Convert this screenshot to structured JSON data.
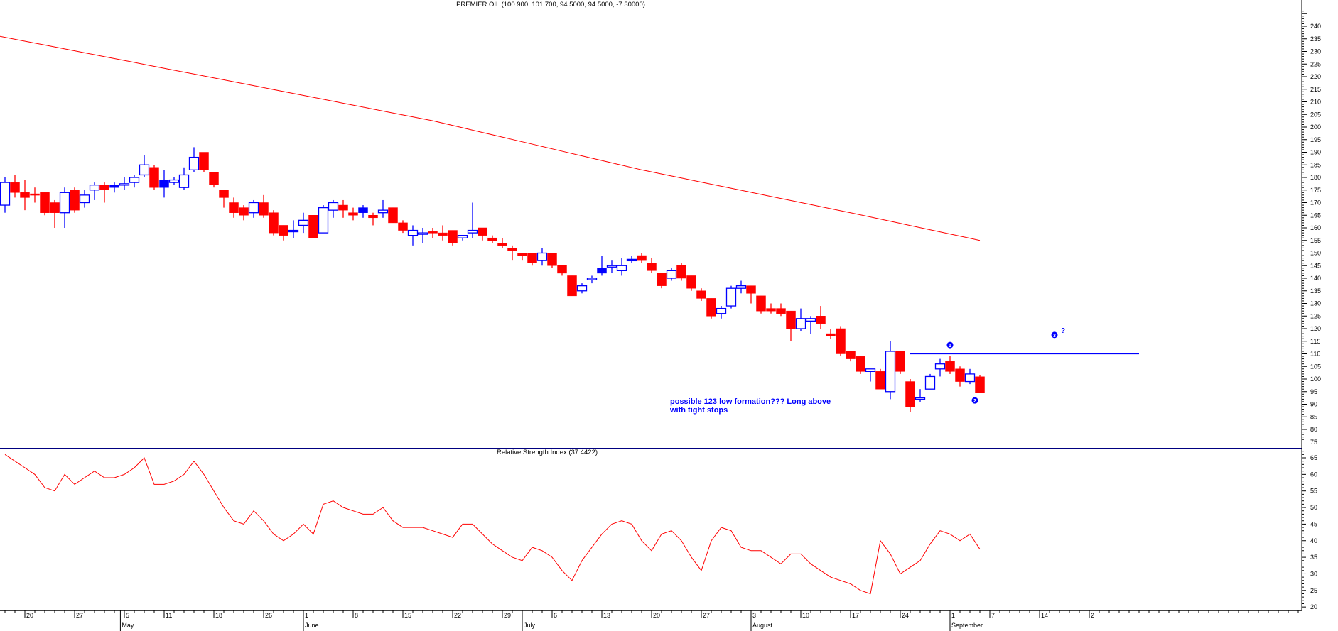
{
  "chart_data": [
    {
      "type": "candlestick",
      "title": "PREMIER OIL (100.900, 101.700, 94.5000, 94.5000, -7.30000)",
      "ylim": [
        75,
        245
      ],
      "y_ticks": [
        75,
        80,
        85,
        90,
        95,
        100,
        105,
        110,
        115,
        120,
        125,
        130,
        135,
        140,
        145,
        150,
        155,
        160,
        165,
        170,
        175,
        180,
        185,
        190,
        195,
        200,
        205,
        210,
        215,
        220,
        225,
        230,
        235,
        240
      ],
      "colors": {
        "up": "#0000ff",
        "down": "#ff0000",
        "moving_average": "#ff0000",
        "annotation": "#0000ff"
      },
      "candles_format": [
        "open",
        "high",
        "low",
        "close",
        "filled"
      ],
      "candles": [
        [
          169,
          180,
          166,
          178,
          0
        ],
        [
          178,
          181,
          172,
          174,
          0
        ],
        [
          174,
          179,
          167,
          172,
          0
        ],
        [
          173.5,
          176,
          170,
          173,
          0
        ],
        [
          174,
          174,
          165,
          166,
          0
        ],
        [
          170,
          171,
          160,
          166,
          0
        ],
        [
          166,
          176,
          160,
          174,
          0
        ],
        [
          175,
          176,
          166,
          167,
          0
        ],
        [
          170,
          175,
          168,
          173,
          0
        ],
        [
          175,
          178,
          171,
          177,
          0
        ],
        [
          177,
          178,
          170,
          175,
          0
        ],
        [
          176,
          178,
          174,
          177,
          1
        ],
        [
          177,
          180,
          175,
          177.5,
          0
        ],
        [
          178,
          181,
          176,
          180,
          0
        ],
        [
          181,
          189,
          180,
          185,
          0
        ],
        [
          184,
          185,
          175,
          176,
          0
        ],
        [
          176,
          183,
          172,
          179,
          1
        ],
        [
          178,
          180,
          177,
          179,
          0
        ],
        [
          176,
          184,
          175,
          181,
          0
        ],
        [
          183,
          192,
          182,
          188,
          0
        ],
        [
          190,
          190,
          182,
          183,
          0
        ],
        [
          182,
          182,
          176,
          177,
          0
        ],
        [
          175,
          175,
          168,
          172,
          0
        ],
        [
          170,
          172,
          164,
          166,
          0
        ],
        [
          168,
          169,
          163,
          165,
          0
        ],
        [
          166,
          171,
          164,
          170,
          0
        ],
        [
          170,
          173,
          164,
          165,
          0
        ],
        [
          166,
          167,
          157,
          158,
          0
        ],
        [
          161,
          161,
          155,
          157,
          0
        ],
        [
          159,
          163,
          156,
          159,
          0
        ],
        [
          161,
          166,
          158,
          163,
          0
        ],
        [
          165,
          165,
          156,
          156,
          0
        ],
        [
          158,
          169,
          158,
          168,
          0
        ],
        [
          167,
          171,
          164,
          170,
          0
        ],
        [
          169,
          171,
          164,
          167,
          0
        ],
        [
          166,
          168,
          163,
          165,
          0
        ],
        [
          166,
          169,
          164,
          168,
          1
        ],
        [
          165,
          166,
          161,
          164,
          0
        ],
        [
          166,
          171,
          164,
          167,
          0
        ],
        [
          168,
          168,
          162,
          162,
          0
        ],
        [
          162,
          163,
          158,
          159,
          0
        ],
        [
          157,
          161,
          153,
          159,
          0
        ],
        [
          158,
          160,
          154,
          158,
          0
        ],
        [
          158.5,
          160,
          156,
          158,
          0
        ],
        [
          158,
          161,
          155,
          157,
          0
        ],
        [
          159,
          159,
          153,
          154,
          0
        ],
        [
          156,
          157,
          155,
          157,
          0
        ],
        [
          158,
          170,
          156,
          159,
          0
        ],
        [
          160,
          160,
          155,
          157,
          0
        ],
        [
          156,
          157,
          154,
          155,
          0
        ],
        [
          154,
          156,
          152,
          153,
          0
        ],
        [
          152,
          153,
          147,
          151,
          0
        ],
        [
          150,
          150,
          147,
          149,
          0
        ],
        [
          150,
          150,
          145,
          146,
          0
        ],
        [
          147,
          152,
          145,
          150,
          0
        ],
        [
          150,
          150,
          144,
          145,
          0
        ],
        [
          145,
          145,
          141,
          142,
          0
        ],
        [
          141,
          141,
          133,
          133,
          0
        ],
        [
          135,
          138,
          134,
          137,
          0
        ],
        [
          140,
          141,
          138,
          140,
          0
        ],
        [
          142,
          149,
          141,
          144,
          1
        ],
        [
          145,
          147,
          142,
          145,
          0
        ],
        [
          143,
          148,
          141,
          145,
          0
        ],
        [
          147,
          149,
          146,
          147.5,
          0
        ],
        [
          149,
          150,
          146,
          147,
          0
        ],
        [
          146,
          148,
          142,
          143,
          0
        ],
        [
          142,
          142,
          136,
          137,
          0
        ],
        [
          140,
          144,
          139,
          143,
          0
        ],
        [
          145,
          146,
          139,
          140,
          0
        ],
        [
          141,
          141,
          135,
          136,
          0
        ],
        [
          135,
          136,
          131,
          132,
          0
        ],
        [
          132,
          132,
          124,
          125,
          0
        ],
        [
          126,
          129,
          124,
          128,
          0
        ],
        [
          129,
          137,
          128,
          136,
          0
        ],
        [
          136,
          139,
          134,
          137,
          0
        ],
        [
          137,
          137,
          130,
          134,
          0
        ],
        [
          133,
          133,
          126,
          127,
          0
        ],
        [
          128,
          130,
          126,
          127,
          0
        ],
        [
          128,
          130,
          125,
          126,
          0
        ],
        [
          127,
          127,
          115,
          120,
          0
        ],
        [
          120,
          128,
          119,
          124,
          0
        ],
        [
          123,
          125,
          118,
          124,
          0
        ],
        [
          125,
          129,
          120,
          122,
          0
        ],
        [
          118,
          120,
          116,
          117,
          0
        ],
        [
          120,
          121,
          109,
          110,
          0
        ],
        [
          111,
          111,
          107,
          108,
          0
        ],
        [
          109,
          109,
          102,
          103,
          0
        ],
        [
          103,
          104,
          99,
          104,
          0
        ],
        [
          103,
          104,
          96,
          96,
          0
        ],
        [
          95,
          115,
          92,
          111,
          0
        ],
        [
          111,
          111,
          102,
          103,
          0
        ],
        [
          99,
          100,
          87,
          89,
          0
        ],
        [
          92,
          96,
          91,
          92.5,
          0
        ],
        [
          96,
          102,
          96,
          101,
          0
        ],
        [
          104,
          108,
          101,
          106,
          0
        ],
        [
          107,
          109,
          102,
          103,
          0
        ],
        [
          104,
          105,
          97,
          99,
          0
        ],
        [
          99,
          104,
          98,
          102,
          0
        ],
        [
          100.9,
          101.7,
          94.5,
          94.5,
          0
        ]
      ],
      "moving_average": [
        [
          -0.5,
          236
        ],
        [
          21,
          219.5
        ],
        [
          43,
          202.5
        ],
        [
          64,
          183
        ],
        [
          85,
          166
        ],
        [
          98,
          155
        ]
      ],
      "annotation_line": {
        "value": 110,
        "from_index": 91,
        "to_index": 114
      },
      "markers": [
        {
          "label": "1",
          "index": 95,
          "value": 113.5
        },
        {
          "label": "2",
          "index": 97.5,
          "value": 91.5
        },
        {
          "label": "3",
          "index": 105.5,
          "value": 117.5,
          "suffix": "?"
        }
      ],
      "note_lines": [
        "possible 123 low formation???  Long above",
        "with tight stops"
      ]
    },
    {
      "type": "line",
      "title": "Relative Strength Index (37.4422)",
      "ylim": [
        17,
        68
      ],
      "y_ticks": [
        20,
        25,
        30,
        35,
        40,
        45,
        50,
        55,
        60,
        65
      ],
      "reference_line": 30,
      "colors": {
        "line": "#ff0000",
        "reference": "#0000ff"
      },
      "values": [
        66,
        64,
        62,
        60,
        56,
        55,
        60,
        57,
        59,
        61,
        59,
        59,
        60,
        62,
        65,
        57,
        57,
        58,
        60,
        64,
        60,
        55,
        50,
        46,
        45,
        49,
        46,
        42,
        40,
        42,
        45,
        42,
        51,
        52,
        50,
        49,
        48,
        48,
        50,
        46,
        44,
        44,
        44,
        43,
        42,
        41,
        45,
        45,
        42,
        39,
        37,
        35,
        34,
        38,
        37,
        35,
        31,
        28,
        34,
        38,
        42,
        45,
        46,
        45,
        40,
        37,
        42,
        43,
        40,
        35,
        31,
        40,
        44,
        43,
        38,
        37,
        37,
        35,
        33,
        36,
        36,
        33,
        31,
        29,
        28,
        27,
        25,
        24,
        40,
        36,
        30,
        32,
        34,
        39,
        43,
        42,
        40,
        42,
        37.4422
      ]
    }
  ],
  "x_axis": {
    "day_ticks": [
      {
        "label": "20",
        "index": 2
      },
      {
        "label": "27",
        "index": 7
      },
      {
        "label": "5",
        "index": 12
      },
      {
        "label": "11",
        "index": 16
      },
      {
        "label": "18",
        "index": 21
      },
      {
        "label": "26",
        "index": 26
      },
      {
        "label": "1",
        "index": 30
      },
      {
        "label": "8",
        "index": 35
      },
      {
        "label": "15",
        "index": 40
      },
      {
        "label": "22",
        "index": 45
      },
      {
        "label": "29",
        "index": 50
      },
      {
        "label": "6",
        "index": 55
      },
      {
        "label": "13",
        "index": 60
      },
      {
        "label": "20",
        "index": 65
      },
      {
        "label": "27",
        "index": 70
      },
      {
        "label": "3",
        "index": 75
      },
      {
        "label": "10",
        "index": 80
      },
      {
        "label": "17",
        "index": 85
      },
      {
        "label": "24",
        "index": 90
      },
      {
        "label": "1",
        "index": 95
      },
      {
        "label": "7",
        "index": 99
      },
      {
        "label": "14",
        "index": 104
      },
      {
        "label": "2",
        "index": 109
      }
    ],
    "month_ticks": [
      {
        "label": "May",
        "index": 11.6
      },
      {
        "label": "June",
        "index": 30
      },
      {
        "label": "July",
        "index": 52
      },
      {
        "label": "August",
        "index": 75
      },
      {
        "label": "September",
        "index": 95
      }
    ]
  }
}
